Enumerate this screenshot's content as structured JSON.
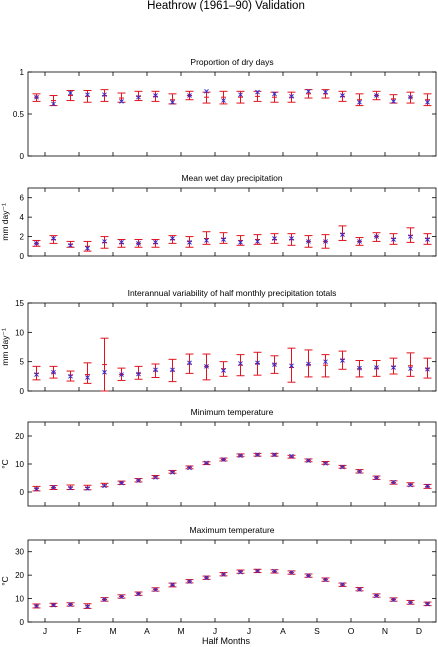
{
  "figure_title": "Heathrow (1961–90) Validation",
  "shared_x": {
    "label": "Half Months",
    "tick_labels": [
      "J",
      "F",
      "M",
      "A",
      "M",
      "J",
      "J",
      "A",
      "S",
      "O",
      "N",
      "D"
    ],
    "positions": [
      1,
      2,
      3,
      4,
      5,
      6,
      7,
      8,
      9,
      10,
      11,
      12,
      13,
      14,
      15,
      16,
      17,
      18,
      19,
      20,
      21,
      22,
      23,
      24
    ]
  },
  "chart_data": [
    {
      "type": "scatter",
      "title": "Proportion of dry days",
      "ylabel": "",
      "ylim": [
        0,
        1
      ],
      "yticks": [
        0,
        0.5,
        1
      ],
      "ytick_labels": [
        "0",
        "0.5",
        "1"
      ],
      "series": [
        {
          "values": [
            0.7,
            0.62,
            0.75,
            0.73,
            0.73,
            0.65,
            0.7,
            0.72,
            0.64,
            0.72,
            0.77,
            0.66,
            0.73,
            0.76,
            0.74,
            0.71,
            0.77,
            0.76,
            0.72,
            0.64,
            0.72,
            0.65,
            0.7,
            0.64
          ]
        },
        {
          "mean": [
            0.7,
            0.66,
            0.72,
            0.71,
            0.72,
            0.69,
            0.71,
            0.71,
            0.67,
            0.72,
            0.7,
            0.7,
            0.7,
            0.71,
            0.7,
            0.7,
            0.74,
            0.74,
            0.71,
            0.67,
            0.72,
            0.68,
            0.7,
            0.67
          ],
          "low": [
            0.65,
            0.6,
            0.66,
            0.64,
            0.65,
            0.64,
            0.66,
            0.65,
            0.62,
            0.67,
            0.63,
            0.62,
            0.63,
            0.65,
            0.64,
            0.64,
            0.69,
            0.69,
            0.65,
            0.6,
            0.67,
            0.63,
            0.63,
            0.6
          ],
          "high": [
            0.74,
            0.72,
            0.78,
            0.78,
            0.79,
            0.75,
            0.77,
            0.77,
            0.74,
            0.77,
            0.76,
            0.77,
            0.77,
            0.77,
            0.76,
            0.76,
            0.79,
            0.79,
            0.77,
            0.74,
            0.77,
            0.73,
            0.76,
            0.74
          ]
        }
      ]
    },
    {
      "type": "scatter",
      "title": "Mean wet day precipitation",
      "ylabel": "mm day⁻¹",
      "ylim": [
        0,
        7
      ],
      "yticks": [
        0,
        2,
        4,
        6
      ],
      "ytick_labels": [
        "0",
        "2",
        "4",
        "6"
      ],
      "series": [
        {
          "values": [
            1.3,
            1.8,
            1.1,
            0.8,
            1.5,
            1.4,
            1.3,
            1.4,
            1.8,
            1.4,
            1.6,
            1.7,
            1.4,
            1.5,
            1.8,
            1.8,
            1.5,
            1.5,
            2.2,
            1.5,
            2.0,
            1.7,
            2.0,
            1.7
          ]
        },
        {
          "mean": [
            1.3,
            1.7,
            1.2,
            1.0,
            1.4,
            1.3,
            1.3,
            1.3,
            1.7,
            1.5,
            1.8,
            1.8,
            1.6,
            1.7,
            1.7,
            1.7,
            1.5,
            1.5,
            2.3,
            1.5,
            2.0,
            1.8,
            2.1,
            1.8
          ],
          "low": [
            1.0,
            1.3,
            0.9,
            0.5,
            0.8,
            0.9,
            0.9,
            0.9,
            1.3,
            0.9,
            1.2,
            1.3,
            1.1,
            1.2,
            1.3,
            1.1,
            0.9,
            0.8,
            1.6,
            1.1,
            1.5,
            1.2,
            1.4,
            1.2
          ],
          "high": [
            1.6,
            2.1,
            1.5,
            1.5,
            2.0,
            1.7,
            1.7,
            1.7,
            2.1,
            2.0,
            2.5,
            2.4,
            2.1,
            2.2,
            2.3,
            2.3,
            2.1,
            2.2,
            3.1,
            1.9,
            2.4,
            2.3,
            2.9,
            2.3
          ]
        }
      ]
    },
    {
      "type": "scatter",
      "title": "Interannual variability of half monthly precipitation totals",
      "ylabel": "mm day⁻¹",
      "ylim": [
        0,
        15
      ],
      "yticks": [
        0,
        5,
        10,
        15
      ],
      "ytick_labels": [
        "0",
        "5",
        "10",
        "15"
      ],
      "series": [
        {
          "values": [
            2.8,
            3.2,
            2.5,
            2.3,
            3.2,
            2.8,
            2.9,
            3.6,
            3.6,
            4.8,
            4.2,
            3.5,
            4.7,
            4.8,
            4.5,
            4.3,
            4.6,
            5.0,
            5.2,
            3.9,
            4.0,
            4.0,
            3.8,
            3.7
          ]
        },
        {
          "mean": [
            3.0,
            3.1,
            2.7,
            2.8,
            4.5,
            2.8,
            3.0,
            3.4,
            3.4,
            4.6,
            4.2,
            3.8,
            4.4,
            4.7,
            4.6,
            4.0,
            4.5,
            4.4,
            5.4,
            3.8,
            3.9,
            4.2,
            4.3,
            3.8
          ],
          "low": [
            1.9,
            2.2,
            1.7,
            1.3,
            0.0,
            1.8,
            2.0,
            2.3,
            1.6,
            3.0,
            1.9,
            2.5,
            2.6,
            2.7,
            3.0,
            1.5,
            2.4,
            2.4,
            3.7,
            2.4,
            2.5,
            2.9,
            2.5,
            2.2
          ],
          "high": [
            4.2,
            4.2,
            3.4,
            4.8,
            9.0,
            3.9,
            4.2,
            4.6,
            5.4,
            6.3,
            6.3,
            5.0,
            6.2,
            6.6,
            6.0,
            7.3,
            7.0,
            6.2,
            6.8,
            5.2,
            5.2,
            5.6,
            6.5,
            5.6
          ]
        }
      ]
    },
    {
      "type": "scatter",
      "title": "Minimum temperature",
      "ylabel": "°C",
      "ylim": [
        -5,
        25
      ],
      "yticks": [
        0,
        10,
        20
      ],
      "ytick_labels": [
        "0",
        "10",
        "20"
      ],
      "series": [
        {
          "values": [
            1.1,
            1.7,
            1.4,
            1.3,
            2.2,
            3.2,
            4.1,
            5.2,
            7.0,
            8.6,
            10.4,
            11.6,
            13.0,
            13.3,
            13.3,
            12.8,
            11.2,
            10.2,
            8.9,
            7.3,
            5.1,
            3.5,
            2.5,
            2.1
          ]
        },
        {
          "mean": [
            1.2,
            1.6,
            1.7,
            1.6,
            2.5,
            3.3,
            4.2,
            5.4,
            7.2,
            8.8,
            10.3,
            11.6,
            13.1,
            13.3,
            13.3,
            12.6,
            11.3,
            10.4,
            9.0,
            7.4,
            5.1,
            3.4,
            2.7,
            2.0
          ]
        },
        {
          "low": [
            0.4,
            0.9,
            0.9,
            0.8,
            1.9,
            2.7,
            3.6,
            4.9,
            6.7,
            8.3,
            9.8,
            11.1,
            12.6,
            12.8,
            12.8,
            12.1,
            10.8,
            9.9,
            8.5,
            6.8,
            4.5,
            2.8,
            2.1,
            1.3
          ],
          "high": [
            2.0,
            2.3,
            2.5,
            2.4,
            3.1,
            3.9,
            4.8,
            5.9,
            7.7,
            9.3,
            10.8,
            12.1,
            13.6,
            13.8,
            13.8,
            13.1,
            11.8,
            10.9,
            9.5,
            8.0,
            5.7,
            4.0,
            3.3,
            2.7
          ]
        }
      ]
    },
    {
      "type": "scatter",
      "title": "Maximum temperature",
      "ylabel": "°C",
      "ylim": [
        0,
        35
      ],
      "yticks": [
        0,
        10,
        20,
        30
      ],
      "ytick_labels": [
        "0",
        "10",
        "20",
        "30"
      ],
      "series": [
        {
          "values": [
            6.8,
            7.2,
            7.4,
            6.6,
            9.6,
            10.8,
            12.0,
            13.8,
            15.9,
            17.3,
            18.9,
            20.3,
            21.3,
            21.8,
            21.7,
            21.1,
            19.8,
            18.0,
            16.0,
            13.9,
            11.2,
            9.5,
            8.3,
            7.7
          ]
        },
        {
          "mean": [
            6.9,
            7.3,
            7.5,
            6.9,
            9.6,
            10.9,
            12.1,
            13.9,
            15.8,
            17.4,
            18.9,
            20.4,
            21.5,
            21.8,
            21.6,
            21.1,
            19.8,
            18.1,
            15.9,
            14.0,
            11.3,
            9.6,
            8.4,
            7.8
          ]
        },
        {
          "low": [
            6.0,
            6.6,
            6.8,
            5.8,
            8.9,
            10.2,
            11.4,
            13.2,
            15.0,
            16.7,
            18.2,
            19.7,
            20.8,
            21.1,
            20.9,
            20.4,
            19.1,
            17.4,
            15.2,
            13.3,
            10.6,
            8.9,
            7.6,
            7.0
          ],
          "high": [
            7.7,
            8.0,
            8.2,
            7.8,
            10.4,
            11.6,
            12.8,
            14.6,
            16.6,
            18.1,
            19.6,
            21.1,
            22.2,
            22.5,
            22.3,
            21.8,
            20.5,
            18.8,
            16.6,
            14.7,
            12.0,
            10.3,
            9.2,
            8.5
          ]
        }
      ]
    }
  ],
  "colors": {
    "observed": "#2a2ad8",
    "modelled": "#e0141e"
  }
}
